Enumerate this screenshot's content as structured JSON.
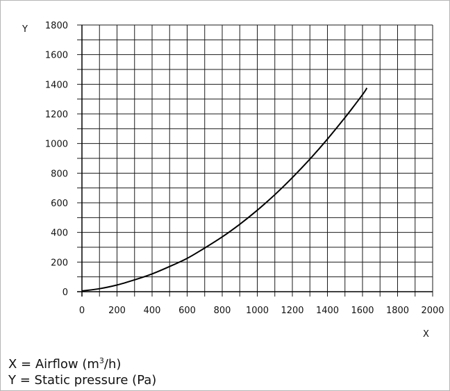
{
  "chart_data": {
    "type": "line",
    "x_axis_letter": "X",
    "y_axis_letter": "Y",
    "xlim": [
      0,
      2000
    ],
    "ylim": [
      0,
      1800
    ],
    "x_ticks": [
      "0",
      "200",
      "400",
      "600",
      "800",
      "1000",
      "1200",
      "1400",
      "1600",
      "1800",
      "2000"
    ],
    "y_ticks": [
      "0",
      "200",
      "400",
      "600",
      "800",
      "1000",
      "1200",
      "1400",
      "1600",
      "1800"
    ],
    "grid": true,
    "x_grid_step": 100,
    "y_grid_step": 100,
    "series": [
      {
        "x": [
          0,
          100,
          200,
          300,
          400,
          500,
          600,
          700,
          800,
          900,
          1000,
          1100,
          1200,
          1300,
          1400,
          1500,
          1600,
          1625
        ],
        "y": [
          5,
          20,
          45,
          80,
          120,
          170,
          225,
          295,
          370,
          455,
          550,
          655,
          770,
          895,
          1030,
          1175,
          1330,
          1375
        ],
        "color": "#000000"
      }
    ]
  },
  "legend_lines": {
    "x_def_prefix": "X = Airflow (m",
    "x_def_sup": "3",
    "x_def_suffix": "/h)",
    "y_def": "Y = Static pressure (Pa)"
  }
}
